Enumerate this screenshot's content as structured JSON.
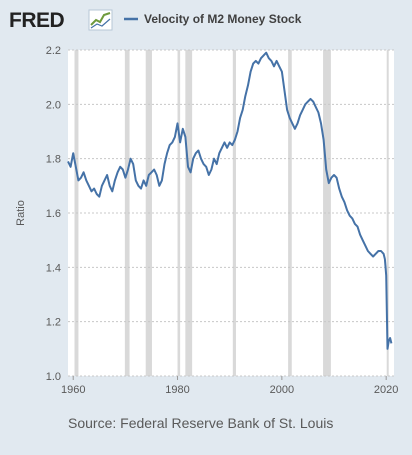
{
  "header": {
    "logo_text": "FRED",
    "legend_label": "Velocity of M2 Money Stock"
  },
  "footer": {
    "source": "Source: Federal Reserve Bank of St. Louis"
  },
  "colors": {
    "background": "#e1e9f0",
    "plot_background": "#ffffff",
    "line": "#4572a7",
    "recession": "#d9d9d9",
    "grid": "#c8c8c8",
    "text": "#595959",
    "logo_text": "#222222"
  },
  "icons": {
    "logo_icon": "line-chart-logo-icon"
  },
  "chart_data": {
    "type": "line",
    "title": "Velocity of M2 Money Stock",
    "xlabel": "",
    "ylabel": "Ratio",
    "xlim": [
      1959,
      2021.5
    ],
    "ylim": [
      1.0,
      2.2
    ],
    "x_ticks": [
      1960,
      1980,
      2000,
      2020
    ],
    "y_ticks": [
      1.0,
      1.2,
      1.4,
      1.6,
      1.8,
      2.0,
      2.2
    ],
    "y_tick_labels": [
      "1.0",
      "1.2",
      "1.4",
      "1.6",
      "1.8",
      "2.0",
      "2.2"
    ],
    "grid": true,
    "legend_position": "top",
    "recessions": [
      [
        1960.25,
        1961.0
      ],
      [
        1969.9,
        1970.8
      ],
      [
        1973.9,
        1975.1
      ],
      [
        1980.0,
        1980.5
      ],
      [
        1981.5,
        1982.8
      ],
      [
        1990.6,
        1991.2
      ],
      [
        2001.2,
        2001.9
      ],
      [
        2007.9,
        2009.4
      ],
      [
        2020.1,
        2020.4
      ]
    ],
    "series": [
      {
        "name": "Velocity of M2 Money Stock",
        "x": [
          1959.0,
          1959.5,
          1960.0,
          1960.5,
          1961.0,
          1961.5,
          1962.0,
          1962.5,
          1963.0,
          1963.5,
          1964.0,
          1964.5,
          1965.0,
          1965.5,
          1966.0,
          1966.5,
          1967.0,
          1967.5,
          1968.0,
          1968.5,
          1969.0,
          1969.5,
          1970.0,
          1970.5,
          1971.0,
          1971.5,
          1972.0,
          1972.5,
          1973.0,
          1973.5,
          1974.0,
          1974.5,
          1975.0,
          1975.5,
          1976.0,
          1976.5,
          1977.0,
          1977.5,
          1978.0,
          1978.5,
          1979.0,
          1979.5,
          1980.0,
          1980.5,
          1981.0,
          1981.5,
          1982.0,
          1982.5,
          1983.0,
          1983.5,
          1984.0,
          1984.5,
          1985.0,
          1985.5,
          1986.0,
          1986.5,
          1987.0,
          1987.5,
          1988.0,
          1988.5,
          1989.0,
          1989.5,
          1990.0,
          1990.5,
          1991.0,
          1991.5,
          1992.0,
          1992.5,
          1993.0,
          1993.5,
          1994.0,
          1994.5,
          1995.0,
          1995.5,
          1996.0,
          1996.5,
          1997.0,
          1997.5,
          1998.0,
          1998.5,
          1999.0,
          1999.5,
          2000.0,
          2000.5,
          2001.0,
          2001.5,
          2002.0,
          2002.5,
          2003.0,
          2003.5,
          2004.0,
          2004.5,
          2005.0,
          2005.5,
          2006.0,
          2006.5,
          2007.0,
          2007.5,
          2008.0,
          2008.5,
          2009.0,
          2009.5,
          2010.0,
          2010.5,
          2011.0,
          2011.5,
          2012.0,
          2012.5,
          2013.0,
          2013.5,
          2014.0,
          2014.5,
          2015.0,
          2015.5,
          2016.0,
          2016.5,
          2017.0,
          2017.5,
          2018.0,
          2018.5,
          2019.0,
          2019.5,
          2019.75,
          2020.0,
          2020.25,
          2020.5,
          2020.75,
          2021.0
        ],
        "values": [
          1.79,
          1.77,
          1.82,
          1.77,
          1.72,
          1.73,
          1.75,
          1.72,
          1.7,
          1.68,
          1.69,
          1.67,
          1.66,
          1.7,
          1.72,
          1.74,
          1.7,
          1.68,
          1.72,
          1.75,
          1.77,
          1.76,
          1.73,
          1.76,
          1.8,
          1.78,
          1.72,
          1.7,
          1.69,
          1.72,
          1.7,
          1.74,
          1.75,
          1.76,
          1.74,
          1.7,
          1.72,
          1.78,
          1.82,
          1.85,
          1.86,
          1.88,
          1.93,
          1.86,
          1.91,
          1.88,
          1.77,
          1.75,
          1.8,
          1.82,
          1.83,
          1.8,
          1.78,
          1.77,
          1.74,
          1.76,
          1.8,
          1.78,
          1.82,
          1.84,
          1.86,
          1.84,
          1.86,
          1.85,
          1.87,
          1.9,
          1.95,
          1.98,
          2.03,
          2.07,
          2.12,
          2.15,
          2.16,
          2.15,
          2.17,
          2.18,
          2.19,
          2.17,
          2.16,
          2.14,
          2.16,
          2.14,
          2.12,
          2.05,
          1.98,
          1.95,
          1.93,
          1.91,
          1.93,
          1.96,
          1.98,
          2.0,
          2.01,
          2.02,
          2.01,
          1.99,
          1.97,
          1.93,
          1.87,
          1.76,
          1.71,
          1.73,
          1.74,
          1.73,
          1.69,
          1.66,
          1.64,
          1.61,
          1.59,
          1.58,
          1.56,
          1.55,
          1.52,
          1.5,
          1.48,
          1.46,
          1.45,
          1.44,
          1.45,
          1.46,
          1.46,
          1.45,
          1.43,
          1.37,
          1.1,
          1.13,
          1.14,
          1.12
        ]
      }
    ]
  }
}
